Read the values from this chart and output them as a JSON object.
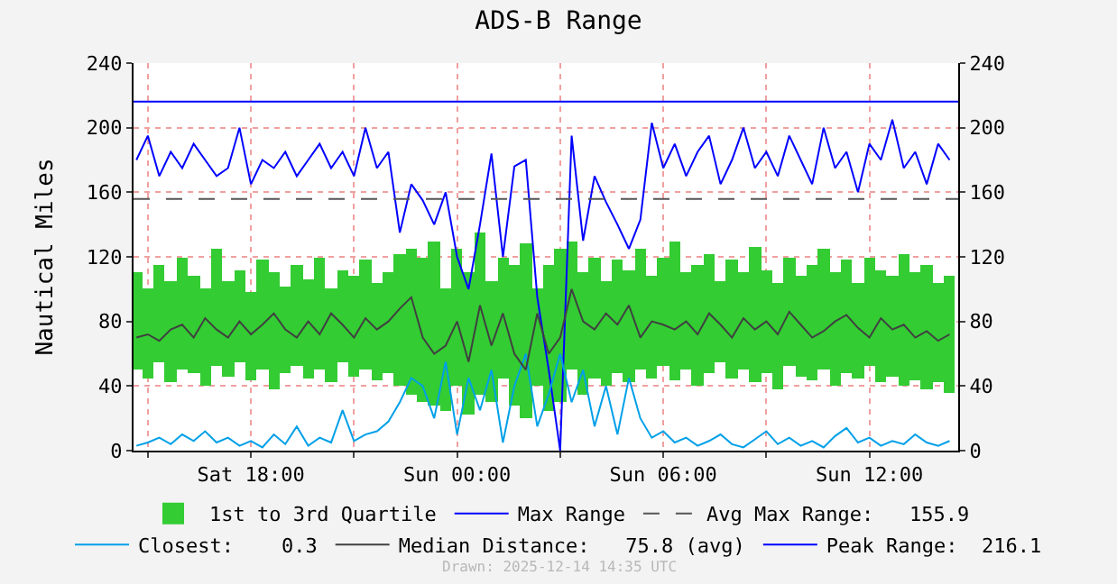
{
  "chart_data": {
    "type": "line",
    "title": "ADS-B Range",
    "ylabel": "Nautical Miles",
    "x": [
      "2025-12-13T14:40",
      "2025-12-13T15:00",
      "2025-12-13T15:20",
      "2025-12-13T15:40",
      "2025-12-13T16:00",
      "2025-12-13T16:20",
      "2025-12-13T16:40",
      "2025-12-13T17:00",
      "2025-12-13T17:20",
      "2025-12-13T17:40",
      "2025-12-13T18:00",
      "2025-12-13T18:20",
      "2025-12-13T18:40",
      "2025-12-13T19:00",
      "2025-12-13T19:20",
      "2025-12-13T19:40",
      "2025-12-13T20:00",
      "2025-12-13T20:20",
      "2025-12-13T20:40",
      "2025-12-13T21:00",
      "2025-12-13T21:20",
      "2025-12-13T21:40",
      "2025-12-13T22:00",
      "2025-12-13T22:20",
      "2025-12-13T22:40",
      "2025-12-13T23:00",
      "2025-12-13T23:20",
      "2025-12-13T23:40",
      "2025-12-14T00:00",
      "2025-12-14T00:20",
      "2025-12-14T00:40",
      "2025-12-14T01:00",
      "2025-12-14T01:20",
      "2025-12-14T01:40",
      "2025-12-14T02:00",
      "2025-12-14T02:20",
      "2025-12-14T02:40",
      "2025-12-14T03:00",
      "2025-12-14T03:20",
      "2025-12-14T03:40",
      "2025-12-14T04:00",
      "2025-12-14T04:20",
      "2025-12-14T04:40",
      "2025-12-14T05:00",
      "2025-12-14T05:20",
      "2025-12-14T05:40",
      "2025-12-14T06:00",
      "2025-12-14T06:20",
      "2025-12-14T06:40",
      "2025-12-14T07:00",
      "2025-12-14T07:20",
      "2025-12-14T07:40",
      "2025-12-14T08:00",
      "2025-12-14T08:20",
      "2025-12-14T08:40",
      "2025-12-14T09:00",
      "2025-12-14T09:20",
      "2025-12-14T09:40",
      "2025-12-14T10:00",
      "2025-12-14T10:20",
      "2025-12-14T10:40",
      "2025-12-14T11:00",
      "2025-12-14T11:20",
      "2025-12-14T11:40",
      "2025-12-14T12:00",
      "2025-12-14T12:20",
      "2025-12-14T12:40",
      "2025-12-14T13:00",
      "2025-12-14T13:20",
      "2025-12-14T13:40",
      "2025-12-14T14:00",
      "2025-12-14T14:20"
    ],
    "series": [
      {
        "name": "1st to 3rd Quartile",
        "type": "bar",
        "color": "#33cc33",
        "base": [
          50,
          45,
          55,
          42,
          50,
          48,
          40,
          52,
          46,
          55,
          44,
          50,
          38,
          48,
          52,
          45,
          50,
          42,
          55,
          46,
          50,
          44,
          48,
          40,
          35,
          30,
          28,
          25,
          40,
          22,
          35,
          30,
          45,
          28,
          20,
          40,
          25,
          30,
          50,
          35,
          45,
          40,
          48,
          42,
          50,
          45,
          52,
          44,
          50,
          40,
          48,
          55,
          45,
          50,
          42,
          48,
          38,
          52,
          46,
          44,
          50,
          40,
          48,
          45,
          52,
          42,
          46,
          40,
          44,
          38,
          42,
          36
        ],
        "values": [
          60,
          55,
          60,
          63,
          70,
          60,
          60,
          73,
          59,
          57,
          54,
          68,
          72,
          54,
          63,
          61,
          70,
          58,
          57,
          62,
          68,
          60,
          62,
          82,
          90,
          90,
          102,
          75,
          85,
          88,
          100,
          75,
          75,
          87,
          108,
          60,
          90,
          95,
          80,
          75,
          75,
          65,
          70,
          70,
          75,
          63,
          68,
          86,
          60,
          75,
          74,
          50,
          73,
          60,
          84,
          64,
          66,
          68,
          62,
          71,
          75,
          70,
          70,
          59,
          68,
          70,
          62,
          82,
          66,
          77,
          62,
          72
        ]
      },
      {
        "name": "Max Range",
        "color": "#0000ff",
        "values": [
          180,
          195,
          170,
          185,
          175,
          190,
          180,
          170,
          175,
          200,
          165,
          180,
          175,
          185,
          170,
          180,
          190,
          175,
          185,
          170,
          200,
          175,
          185,
          135,
          165,
          155,
          140,
          160,
          120,
          100,
          140,
          184,
          120,
          176,
          180,
          95,
          50,
          0,
          195,
          130,
          170,
          154,
          140,
          125,
          143,
          203,
          175,
          190,
          170,
          185,
          195,
          165,
          180,
          200,
          175,
          185,
          170,
          195,
          180,
          165,
          200,
          175,
          185,
          160,
          190,
          180,
          205,
          175,
          185,
          165,
          190,
          180
        ]
      },
      {
        "name": "Closest:    0.3",
        "color": "#00a0e8",
        "values": [
          3,
          5,
          8,
          4,
          10,
          6,
          12,
          5,
          8,
          3,
          6,
          2,
          10,
          4,
          15,
          3,
          8,
          5,
          25,
          6,
          10,
          12,
          18,
          30,
          45,
          40,
          20,
          55,
          10,
          45,
          25,
          50,
          5,
          40,
          60,
          15,
          35,
          60,
          30,
          50,
          15,
          40,
          10,
          45,
          20,
          8,
          12,
          5,
          8,
          3,
          6,
          10,
          4,
          2,
          7,
          12,
          4,
          8,
          3,
          6,
          2,
          9,
          14,
          5,
          8,
          3,
          6,
          4,
          10,
          5,
          3,
          6
        ]
      },
      {
        "name": "Median Distance:   75.8 (avg)",
        "color": "#404040",
        "values": [
          70,
          72,
          68,
          75,
          78,
          70,
          82,
          75,
          70,
          80,
          72,
          78,
          85,
          75,
          70,
          80,
          72,
          85,
          78,
          70,
          82,
          75,
          80,
          88,
          95,
          70,
          60,
          65,
          80,
          55,
          90,
          65,
          85,
          60,
          50,
          85,
          60,
          70,
          100,
          80,
          75,
          85,
          78,
          90,
          70,
          80,
          78,
          75,
          80,
          72,
          85,
          78,
          70,
          82,
          75,
          80,
          72,
          86,
          78,
          70,
          74,
          80,
          84,
          76,
          70,
          82,
          75,
          78,
          70,
          74,
          68,
          72
        ]
      }
    ],
    "ref_lines": [
      {
        "axis": "y",
        "value": 155.9,
        "label": "Avg Max Range:   155.9",
        "color": "#555555",
        "line_style": "dashed"
      },
      {
        "axis": "y",
        "value": 216.1,
        "label": "Peak Range:  216.1",
        "color": "#0000ff",
        "line_style": "solid"
      }
    ],
    "xlim": [
      "2025-12-13T14:35",
      "2025-12-14T14:35"
    ],
    "xticks": [
      {
        "value": "2025-12-13T15:00",
        "label": null
      },
      {
        "value": "2025-12-13T18:00",
        "label": "Sat 18:00"
      },
      {
        "value": "2025-12-13T21:00",
        "label": null
      },
      {
        "value": "2025-12-14T00:00",
        "label": "Sun 00:00"
      },
      {
        "value": "2025-12-14T03:00",
        "label": null
      },
      {
        "value": "2025-12-14T06:00",
        "label": "Sun 06:00"
      },
      {
        "value": "2025-12-14T09:00",
        "label": null
      },
      {
        "value": "2025-12-14T12:00",
        "label": "Sun 12:00"
      }
    ],
    "ylim": [
      0,
      240
    ],
    "yticks": [
      0,
      40,
      80,
      120,
      160,
      200,
      240
    ],
    "y2lim": [
      0,
      240
    ],
    "y2ticks": [
      0,
      40,
      80,
      120,
      160,
      200,
      240
    ],
    "grid": true,
    "legend": "bottom",
    "marker": "none",
    "annotations": [
      "Drawn: 2025-12-14 14:35 UTC"
    ]
  }
}
